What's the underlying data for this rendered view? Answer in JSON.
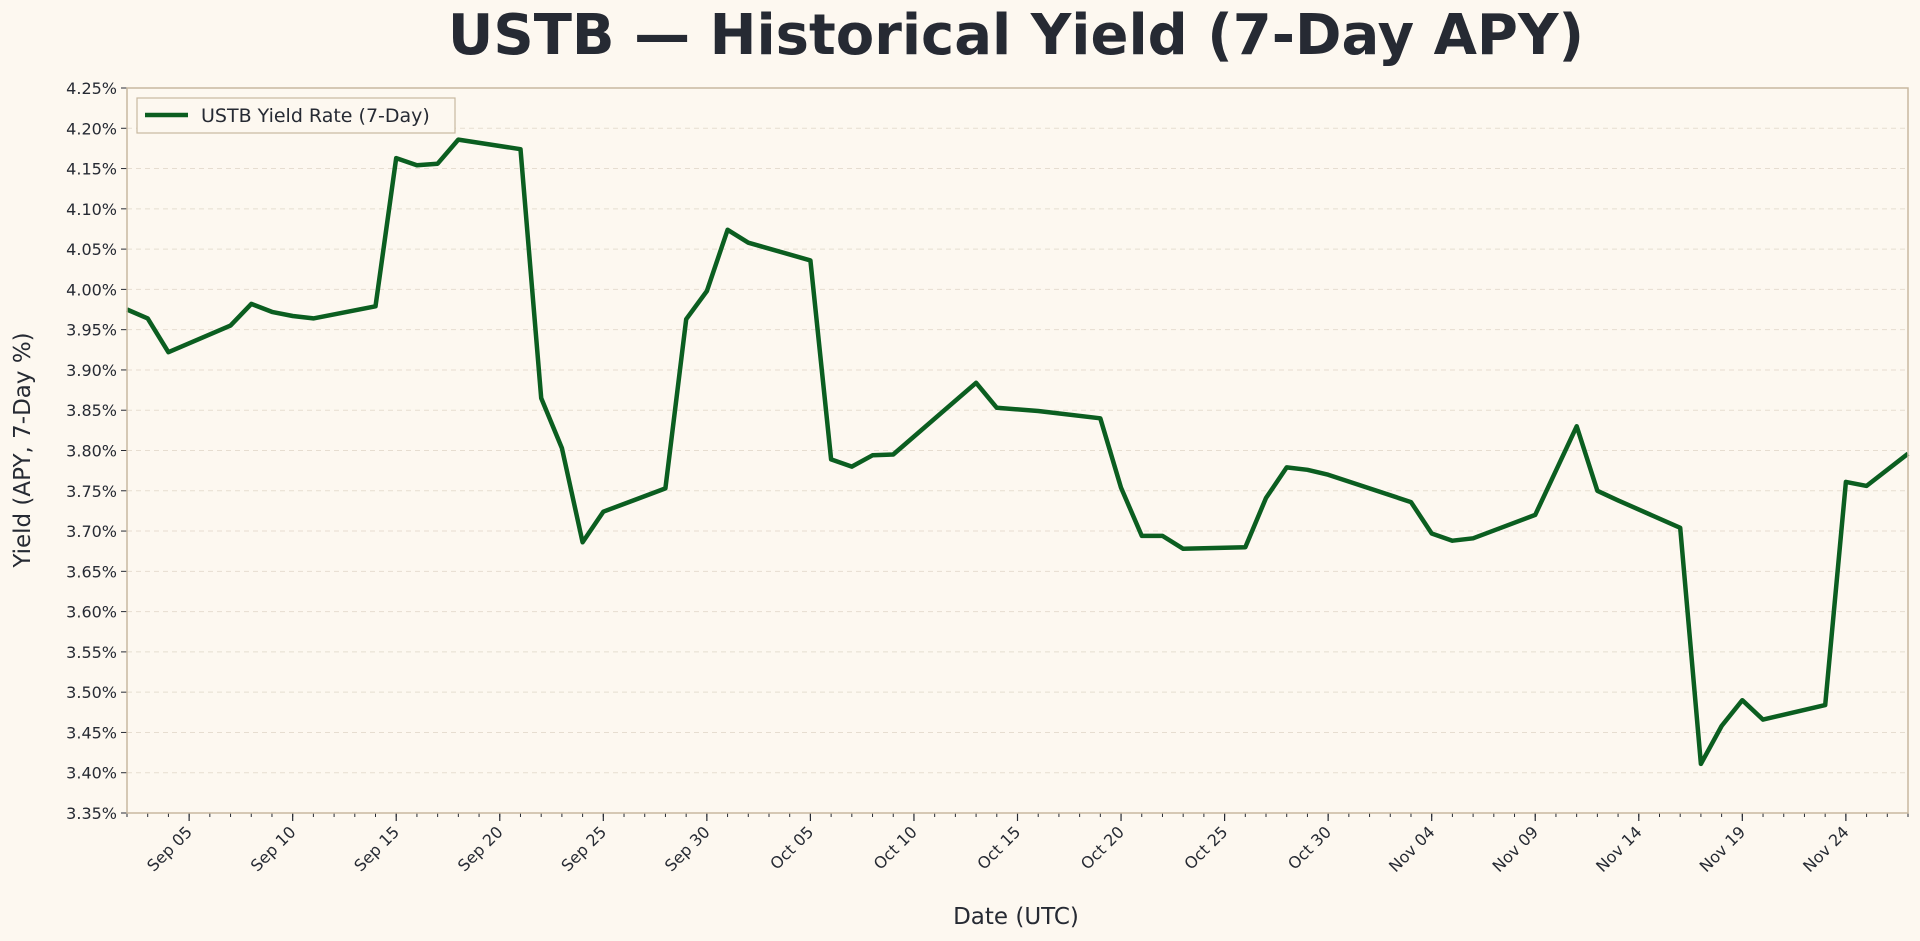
{
  "chart_data": {
    "type": "line",
    "title": "USTB — Historical Yield (7-Day APY)",
    "xlabel": "Date (UTC)",
    "ylabel": "Yield (APY, 7-Day %)",
    "ylim": [
      3.35,
      4.25
    ],
    "xlim": [
      "2024-09-02",
      "2024-11-27"
    ],
    "grid": true,
    "legend_placement": "top-left",
    "colors": {
      "line": "#0b5e20",
      "background": "#fdf8f0",
      "axes": "#c8b8a0",
      "text": "#262a33"
    },
    "yticks": [
      "3.35%",
      "3.40%",
      "3.45%",
      "3.50%",
      "3.55%",
      "3.60%",
      "3.65%",
      "3.70%",
      "3.75%",
      "3.80%",
      "3.85%",
      "3.90%",
      "3.95%",
      "4.00%",
      "4.05%",
      "4.10%",
      "4.15%",
      "4.20%",
      "4.25%"
    ],
    "xticks": [
      {
        "date": "2024-09-05",
        "label": "Sep 05"
      },
      {
        "date": "2024-09-10",
        "label": "Sep 10"
      },
      {
        "date": "2024-09-15",
        "label": "Sep 15"
      },
      {
        "date": "2024-09-20",
        "label": "Sep 20"
      },
      {
        "date": "2024-09-25",
        "label": "Sep 25"
      },
      {
        "date": "2024-09-30",
        "label": "Sep 30"
      },
      {
        "date": "2024-10-05",
        "label": "Oct 05"
      },
      {
        "date": "2024-10-10",
        "label": "Oct 10"
      },
      {
        "date": "2024-10-15",
        "label": "Oct 15"
      },
      {
        "date": "2024-10-20",
        "label": "Oct 20"
      },
      {
        "date": "2024-10-25",
        "label": "Oct 25"
      },
      {
        "date": "2024-10-30",
        "label": "Oct 30"
      },
      {
        "date": "2024-11-04",
        "label": "Nov 04"
      },
      {
        "date": "2024-11-09",
        "label": "Nov 09"
      },
      {
        "date": "2024-11-14",
        "label": "Nov 14"
      },
      {
        "date": "2024-11-19",
        "label": "Nov 19"
      },
      {
        "date": "2024-11-24",
        "label": "Nov 24"
      }
    ],
    "series": [
      {
        "name": "USTB Yield Rate (7-Day)",
        "x": [
          "2024-09-02",
          "2024-09-03",
          "2024-09-04",
          "2024-09-07",
          "2024-09-08",
          "2024-09-09",
          "2024-09-10",
          "2024-09-11",
          "2024-09-14",
          "2024-09-15",
          "2024-09-16",
          "2024-09-17",
          "2024-09-18",
          "2024-09-21",
          "2024-09-22",
          "2024-09-23",
          "2024-09-24",
          "2024-09-25",
          "2024-09-28",
          "2024-09-29",
          "2024-09-30",
          "2024-10-01",
          "2024-10-02",
          "2024-10-05",
          "2024-10-06",
          "2024-10-07",
          "2024-10-08",
          "2024-10-09",
          "2024-10-13",
          "2024-10-14",
          "2024-10-16",
          "2024-10-19",
          "2024-10-20",
          "2024-10-21",
          "2024-10-22",
          "2024-10-23",
          "2024-10-26",
          "2024-10-27",
          "2024-10-28",
          "2024-10-29",
          "2024-10-30",
          "2024-11-03",
          "2024-11-04",
          "2024-11-05",
          "2024-11-06",
          "2024-11-09",
          "2024-11-11",
          "2024-11-12",
          "2024-11-13",
          "2024-11-16",
          "2024-11-17",
          "2024-11-18",
          "2024-11-19",
          "2024-11-20",
          "2024-11-23",
          "2024-11-24",
          "2024-11-25",
          "2024-11-27"
        ],
        "y": [
          3.975,
          3.964,
          3.922,
          3.955,
          3.982,
          3.972,
          3.967,
          3.964,
          3.979,
          4.163,
          4.154,
          4.156,
          4.186,
          4.174,
          3.865,
          3.803,
          3.686,
          3.724,
          3.753,
          3.963,
          3.998,
          4.074,
          4.058,
          4.036,
          3.789,
          3.78,
          3.794,
          3.795,
          3.884,
          3.853,
          3.849,
          3.84,
          3.754,
          3.694,
          3.694,
          3.678,
          3.68,
          3.741,
          3.779,
          3.776,
          3.77,
          3.736,
          3.697,
          3.688,
          3.691,
          3.72,
          3.83,
          3.75,
          3.738,
          3.704,
          3.411,
          3.458,
          3.49,
          3.466,
          3.484,
          3.761,
          3.756,
          3.796
        ]
      }
    ]
  }
}
